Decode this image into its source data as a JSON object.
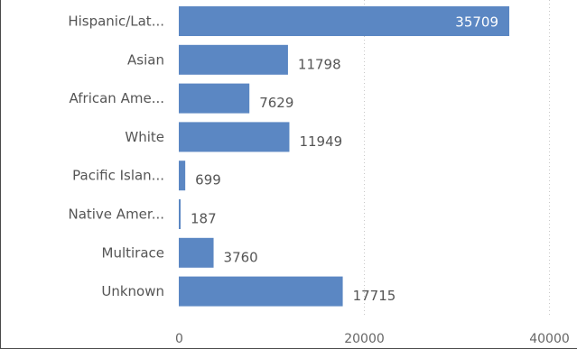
{
  "chart_data": {
    "type": "bar",
    "orientation": "horizontal",
    "categories": [
      "Hispanic/Lat...",
      "Asian",
      "African Ame...",
      "White",
      "Pacific Islan...",
      "Native Amer...",
      "Multirace",
      "Unknown"
    ],
    "values": [
      35709,
      11798,
      7629,
      11949,
      699,
      187,
      3760,
      17715
    ],
    "x_ticks": [
      "0",
      "20000",
      "40000"
    ],
    "xlim": [
      0,
      40000
    ],
    "grid": true,
    "bar_color": "#5b87c3",
    "title": "",
    "xlabel": "",
    "ylabel": ""
  }
}
